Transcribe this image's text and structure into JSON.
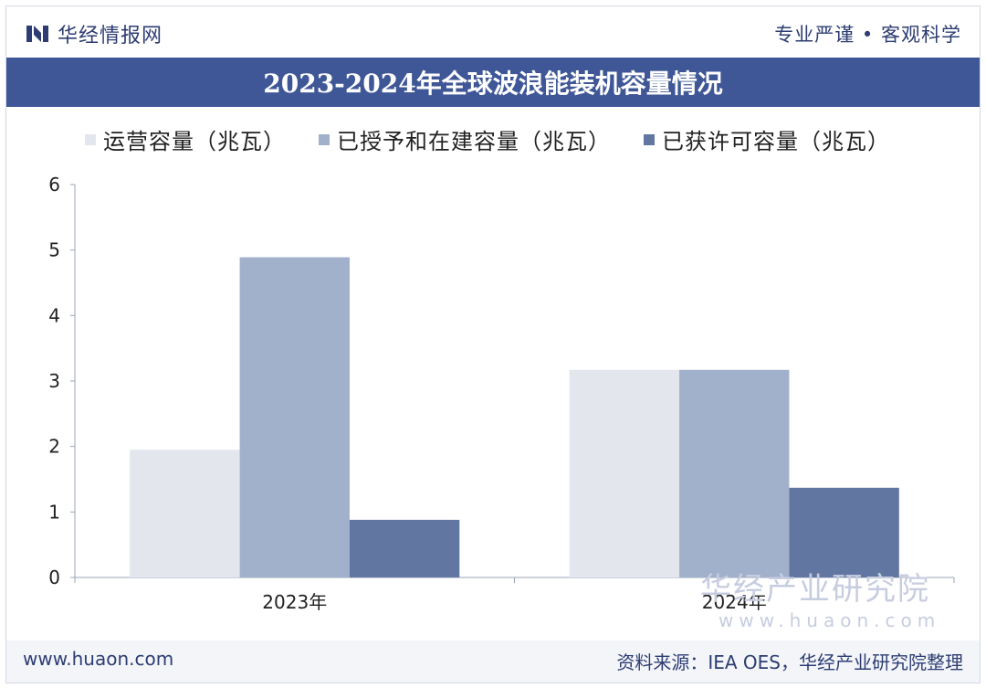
{
  "header": {
    "brand": "华经情报网",
    "slogan": "专业严谨 • 客观科学"
  },
  "chart_data": {
    "type": "bar",
    "title": "2023-2024年全球波浪能装机容量情况",
    "categories": [
      "2023年",
      "2024年"
    ],
    "series": [
      {
        "name": "运营容量（兆瓦）",
        "color": "#e3e6ed",
        "values": [
          1.95,
          3.17
        ]
      },
      {
        "name": "已授予和在建容量（兆瓦）",
        "color": "#a1b0cb",
        "values": [
          4.89,
          3.17
        ]
      },
      {
        "name": "已获许可容量（兆瓦）",
        "color": "#6276a2",
        "values": [
          0.88,
          1.37
        ]
      }
    ],
    "ylim": [
      0,
      6
    ],
    "yticks": [
      "0",
      "1",
      "2",
      "3",
      "4",
      "5",
      "6"
    ],
    "xlabel": "",
    "ylabel": "",
    "legend": "top"
  },
  "watermark": {
    "name": "华经产业研究院",
    "url": "www.huaon.com"
  },
  "footer": {
    "url": "www.huaon.com",
    "source": "资料来源：IEA OES，华经产业研究院整理"
  }
}
